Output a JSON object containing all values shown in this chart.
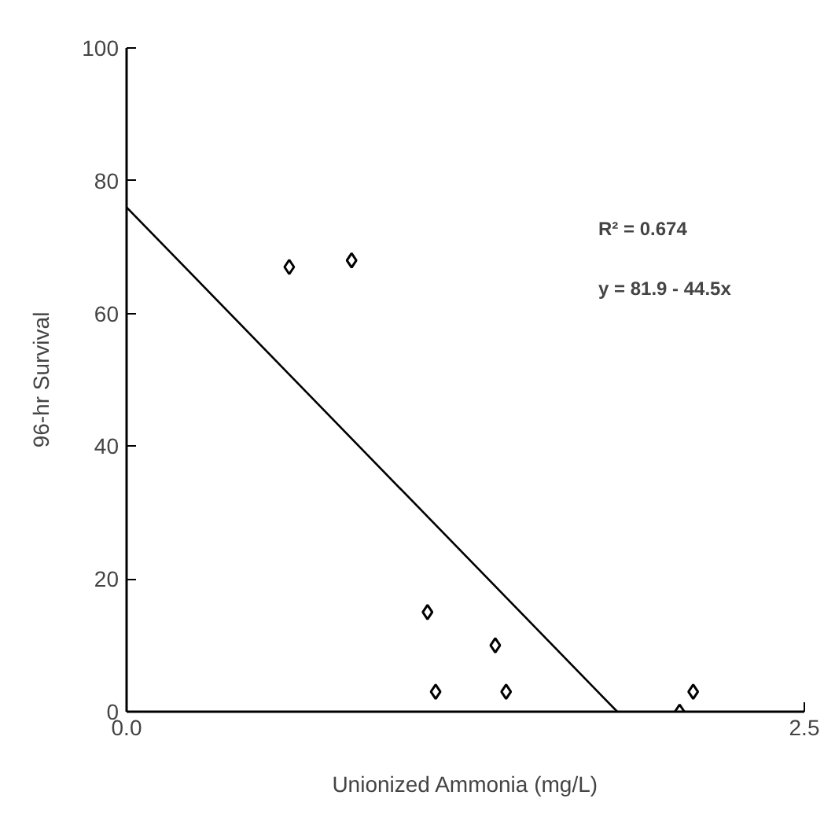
{
  "chart_data": {
    "type": "scatter",
    "xlabel": "Unionized Ammonia (mg/L)",
    "ylabel": "96-hr Survival",
    "xlim": [
      0,
      2.5
    ],
    "ylim": [
      0,
      100
    ],
    "xticks": [
      {
        "value": 0,
        "label": "0.0"
      },
      {
        "value": 2.5,
        "label": "2.5"
      }
    ],
    "yticks": [
      0,
      20,
      40,
      60,
      80,
      100
    ],
    "grid": false,
    "series": [
      {
        "marker": "diamond",
        "color": "#000000",
        "x": [
          0.6,
          0.83,
          1.11,
          1.14,
          1.36,
          1.4,
          2.04,
          2.09
        ],
        "values": [
          67,
          68,
          15,
          3,
          10,
          3,
          0,
          3
        ]
      },
      {
        "type": "line",
        "marker": "none",
        "color": "#000000",
        "x": [
          0,
          1.81
        ],
        "values": [
          76,
          0
        ]
      }
    ],
    "annotations": [
      "R² = 0.674",
      "y = 81.9 - 44.5x"
    ]
  }
}
